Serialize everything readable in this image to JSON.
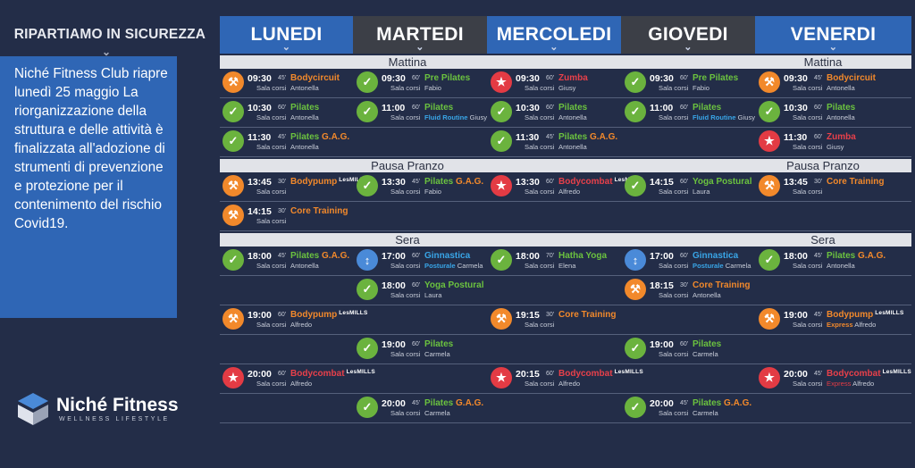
{
  "header": {
    "title": "RIPARTIAMO IN SICUREZZA",
    "days": [
      "LUNEDI",
      "MARTEDI",
      "MERCOLEDI",
      "GIOVEDI",
      "VENERDI"
    ]
  },
  "sidebar": {
    "text": "Niché Fitness Club riapre lunedì 25 maggio La riorganizzazione della struttura e delle attività è finalizzata all'adozione di strumenti di prevenzione e protezione per il contenimento del rischio Covid19."
  },
  "bands": {
    "morning": "Mattina",
    "lunch": "Pausa Pranzo",
    "evening": "Sera"
  },
  "room": "Sala corsi",
  "lesmills": "LesMILLS",
  "brand": {
    "name": "Niché Fitness",
    "tagline": "WELLNESS LIFESTYLE"
  },
  "colors": {
    "blue": "#2f66b5",
    "grey": "#3c3f47",
    "orange": "#f2892b",
    "green": "#6bb33e",
    "red": "#e33b44",
    "cyan": "#39a6e8"
  },
  "classes": [
    {
      "col": 0,
      "row": 0,
      "time": "09:30",
      "dur": "45'",
      "name": "Bodycircuit",
      "color": "orange",
      "icon": "orange",
      "trainer": "Antonella"
    },
    {
      "col": 0,
      "row": 1,
      "time": "10:30",
      "dur": "60'",
      "name": "Pilates",
      "color": "green",
      "icon": "green",
      "trainer": "Antonella"
    },
    {
      "col": 0,
      "row": 2,
      "time": "11:30",
      "dur": "45'",
      "name": "Pilates",
      "name2": "G.A.G.",
      "color": "green",
      "color2": "orange",
      "icon": "green",
      "trainer": "Antonella"
    },
    {
      "col": 0,
      "row": 3,
      "time": "13:45",
      "dur": "30'",
      "name": "Bodypump",
      "color": "orange",
      "icon": "orange",
      "lesmills": true,
      "trainer": ""
    },
    {
      "col": 0,
      "row": 4,
      "time": "14:15",
      "dur": "30'",
      "name": "Core Training",
      "color": "orange",
      "icon": "orange",
      "trainer": ""
    },
    {
      "col": 0,
      "row": 5,
      "time": "18:00",
      "dur": "45'",
      "name": "Pilates",
      "name2": "G.A.G.",
      "color": "green",
      "color2": "orange",
      "icon": "green",
      "trainer": "Antonella"
    },
    {
      "col": 0,
      "row": 7,
      "time": "19:00",
      "dur": "60'",
      "name": "Bodypump",
      "color": "orange",
      "icon": "orange",
      "lesmills": true,
      "trainer": "Alfredo"
    },
    {
      "col": 0,
      "row": 9,
      "time": "20:00",
      "dur": "60'",
      "name": "Bodycombat",
      "color": "red",
      "icon": "red",
      "lesmills": true,
      "trainer": "Alfredo"
    },
    {
      "col": 1,
      "row": 0,
      "time": "09:30",
      "dur": "60'",
      "name": "Pre Pilates",
      "color": "green",
      "icon": "green",
      "trainer": "Fabio"
    },
    {
      "col": 1,
      "row": 1,
      "time": "11:00",
      "dur": "60'",
      "name": "Pilates",
      "color": "green",
      "icon": "green",
      "sub": "Fluid Routine",
      "subColor": "cyan",
      "trainer": "Giusy"
    },
    {
      "col": 1,
      "row": 3,
      "time": "13:30",
      "dur": "45'",
      "name": "Pilates",
      "name2": "G.A.G.",
      "color": "green",
      "color2": "orange",
      "icon": "green",
      "trainer": "Fabio"
    },
    {
      "col": 1,
      "row": 5,
      "time": "17:00",
      "dur": "60'",
      "name": "Ginnastica",
      "color": "cyan",
      "icon": "blue",
      "sub": "Posturale",
      "subColor": "cyan",
      "trainer": "Carmela"
    },
    {
      "col": 1,
      "row": 6,
      "time": "18:00",
      "dur": "60'",
      "name": "Yoga Postural",
      "color": "green",
      "icon": "green",
      "trainer": "Laura"
    },
    {
      "col": 1,
      "row": 8,
      "time": "19:00",
      "dur": "60'",
      "name": "Pilates",
      "color": "green",
      "icon": "green",
      "trainer": "Carmela"
    },
    {
      "col": 1,
      "row": 10,
      "time": "20:00",
      "dur": "45'",
      "name": "Pilates",
      "name2": "G.A.G.",
      "color": "green",
      "color2": "orange",
      "icon": "green",
      "trainer": "Carmela"
    },
    {
      "col": 2,
      "row": 0,
      "time": "09:30",
      "dur": "60'",
      "name": "Zumba",
      "color": "red",
      "icon": "red",
      "trainer": "Giusy"
    },
    {
      "col": 2,
      "row": 1,
      "time": "10:30",
      "dur": "60'",
      "name": "Pilates",
      "color": "green",
      "icon": "green",
      "trainer": "Antonella"
    },
    {
      "col": 2,
      "row": 2,
      "time": "11:30",
      "dur": "45'",
      "name": "Pilates",
      "name2": "G.A.G.",
      "color": "green",
      "color2": "orange",
      "icon": "green",
      "trainer": "Antonella"
    },
    {
      "col": 2,
      "row": 3,
      "time": "13:30",
      "dur": "60'",
      "name": "Bodycombat",
      "color": "red",
      "icon": "red",
      "lesmills": true,
      "trainer": "Alfredo"
    },
    {
      "col": 2,
      "row": 5,
      "time": "18:00",
      "dur": "70'",
      "name": "Hatha Yoga",
      "color": "green",
      "icon": "green",
      "trainer": "Elena"
    },
    {
      "col": 2,
      "row": 7,
      "time": "19:15",
      "dur": "30'",
      "name": "Core Training",
      "color": "orange",
      "icon": "orange",
      "trainer": ""
    },
    {
      "col": 2,
      "row": 9,
      "time": "20:15",
      "dur": "60'",
      "name": "Bodycombat",
      "color": "red",
      "icon": "red",
      "lesmills": true,
      "trainer": "Alfredo"
    },
    {
      "col": 3,
      "row": 0,
      "time": "09:30",
      "dur": "60'",
      "name": "Pre Pilates",
      "color": "green",
      "icon": "green",
      "trainer": "Fabio"
    },
    {
      "col": 3,
      "row": 1,
      "time": "11:00",
      "dur": "60'",
      "name": "Pilates",
      "color": "green",
      "icon": "green",
      "sub": "Fluid Routine",
      "subColor": "cyan",
      "trainer": "Giusy"
    },
    {
      "col": 3,
      "row": 3,
      "time": "14:15",
      "dur": "60'",
      "name": "Yoga Postural",
      "color": "green",
      "icon": "green",
      "trainer": "Laura"
    },
    {
      "col": 3,
      "row": 5,
      "time": "17:00",
      "dur": "60'",
      "name": "Ginnastica",
      "color": "cyan",
      "icon": "blue",
      "sub": "Posturale",
      "subColor": "cyan",
      "trainer": "Carmela"
    },
    {
      "col": 3,
      "row": 6,
      "time": "18:15",
      "dur": "30'",
      "name": "Core Training",
      "color": "orange",
      "icon": "orange",
      "trainer": "Antonella"
    },
    {
      "col": 3,
      "row": 8,
      "time": "19:00",
      "dur": "60'",
      "name": "Pilates",
      "color": "green",
      "icon": "green",
      "trainer": "Carmela"
    },
    {
      "col": 3,
      "row": 10,
      "time": "20:00",
      "dur": "45'",
      "name": "Pilates",
      "name2": "G.A.G.",
      "color": "green",
      "color2": "orange",
      "icon": "green",
      "trainer": "Carmela"
    },
    {
      "col": 4,
      "row": 0,
      "time": "09:30",
      "dur": "45'",
      "name": "Bodycircuit",
      "color": "orange",
      "icon": "orange",
      "trainer": "Antonella"
    },
    {
      "col": 4,
      "row": 1,
      "time": "10:30",
      "dur": "60'",
      "name": "Pilates",
      "color": "green",
      "icon": "green",
      "trainer": "Antonella"
    },
    {
      "col": 4,
      "row": 2,
      "time": "11:30",
      "dur": "60'",
      "name": "Zumba",
      "color": "red",
      "icon": "red",
      "trainer": "Giusy"
    },
    {
      "col": 4,
      "row": 3,
      "time": "13:45",
      "dur": "30'",
      "name": "Core Training",
      "color": "orange",
      "icon": "orange",
      "trainer": ""
    },
    {
      "col": 4,
      "row": 5,
      "time": "18:00",
      "dur": "45'",
      "name": "Pilates",
      "name2": "G.A.G.",
      "color": "green",
      "color2": "orange",
      "icon": "green",
      "trainer": "Antonella"
    },
    {
      "col": 4,
      "row": 7,
      "time": "19:00",
      "dur": "45'",
      "name": "Bodypump",
      "color": "orange",
      "icon": "orange",
      "lesmills": true,
      "sub": "Express",
      "subColor": "orange",
      "trainer": "Alfredo"
    },
    {
      "col": 4,
      "row": 9,
      "time": "20:00",
      "dur": "45'",
      "name": "Bodycombat",
      "color": "red",
      "icon": "red",
      "lesmills": true,
      "sub": "Express",
      "subColor": "red",
      "trainer": "Alfredo"
    }
  ]
}
